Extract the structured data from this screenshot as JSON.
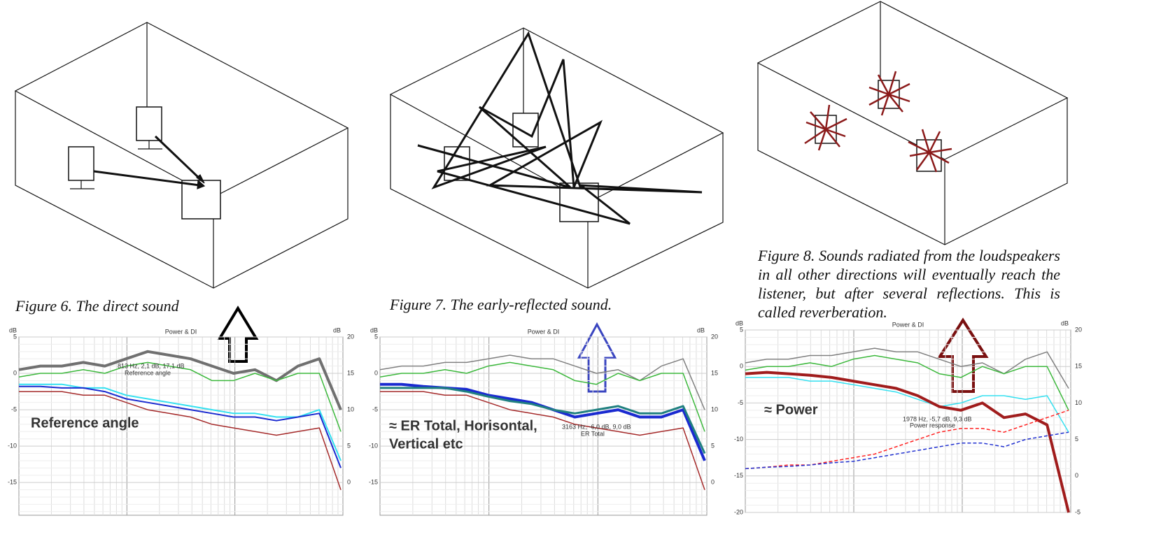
{
  "figures": [
    {
      "caption": "Figure 6. The direct sound"
    },
    {
      "caption": "Figure 7. The early-reflected sound."
    },
    {
      "caption": "Figure 8. Sounds radiated from the loudspeakers in all other directions will eventually reach the listener, but after several reflections. This is called reverberation."
    }
  ],
  "chart_data": [
    {
      "type": "line",
      "title": "Power & DI",
      "ylabel": "dB",
      "y2label": "dB",
      "ylim": [
        -19.5,
        5
      ],
      "yticks": [
        5,
        0,
        -5,
        -10,
        -15
      ],
      "y2lim": [
        -4.5,
        20
      ],
      "y2ticks": [
        20,
        15,
        10,
        5,
        0
      ],
      "grid": true,
      "series": [
        {
          "color": "#707070",
          "width": 4,
          "values": [
            0.5,
            1,
            1,
            1.5,
            1,
            2,
            3,
            2.5,
            2,
            1,
            0,
            0.5,
            -1,
            1,
            2,
            -5
          ]
        },
        {
          "color": "#3cb83c",
          "width": 1.5,
          "values": [
            -0.5,
            0,
            0,
            0.5,
            0,
            1,
            1.5,
            1,
            0.5,
            -1,
            -1,
            0,
            -1,
            0,
            0,
            -8
          ]
        },
        {
          "color": "#33e0f0",
          "width": 2,
          "values": [
            -1.5,
            -1.5,
            -1.5,
            -2,
            -2,
            -3,
            -3.5,
            -4,
            -4.5,
            -5,
            -5.5,
            -5.5,
            -6,
            -6,
            -5,
            -12
          ]
        },
        {
          "color": "#1a2ad0",
          "width": 2,
          "values": [
            -1.8,
            -1.8,
            -2,
            -2,
            -2.5,
            -3.5,
            -4,
            -4.5,
            -5,
            -5.5,
            -6,
            -6,
            -6.5,
            -6,
            -5.5,
            -13
          ]
        },
        {
          "color": "#a52a2a",
          "width": 1.5,
          "values": [
            -2.5,
            -2.5,
            -2.5,
            -3,
            -3,
            -4,
            -5,
            -5.5,
            -6,
            -7,
            -7.5,
            -8,
            -8.5,
            -8,
            -7.5,
            -16
          ]
        }
      ],
      "annotations": [
        "813 Hz, 2,1 dB, 17,1 dB",
        "Reference angle"
      ],
      "label": [
        "Reference angle"
      ],
      "label_color": "#000000"
    },
    {
      "type": "line",
      "title": "Power & DI",
      "ylabel": "dB",
      "y2label": "dB",
      "ylim": [
        -19.5,
        5
      ],
      "yticks": [
        5,
        0,
        -5,
        -10,
        -15
      ],
      "y2lim": [
        -4.5,
        20
      ],
      "y2ticks": [
        20,
        15,
        10,
        5,
        0
      ],
      "grid": true,
      "series": [
        {
          "color": "#808080",
          "width": 1.5,
          "values": [
            0.5,
            1,
            1,
            1.5,
            1.5,
            2,
            2.5,
            2,
            2,
            1,
            0,
            0.5,
            -1,
            1,
            2,
            -5
          ]
        },
        {
          "color": "#3cb83c",
          "width": 1.5,
          "values": [
            -0.5,
            0,
            0,
            0.5,
            0,
            1,
            1.5,
            1,
            0.5,
            -1,
            -1.5,
            0,
            -1,
            0,
            0,
            -8
          ]
        },
        {
          "color": "#1a2ad0",
          "width": 4,
          "values": [
            -1.5,
            -1.5,
            -1.8,
            -2,
            -2.2,
            -3,
            -3.5,
            -4,
            -5,
            -6,
            -5.5,
            -5,
            -6,
            -6,
            -5,
            -12
          ]
        },
        {
          "color": "#208080",
          "width": 3,
          "values": [
            -2,
            -2,
            -2,
            -2,
            -2.5,
            -3.2,
            -3.8,
            -4.2,
            -5,
            -5.5,
            -5,
            -4.5,
            -5.5,
            -5.5,
            -4.5,
            -11
          ]
        },
        {
          "color": "#a52a2a",
          "width": 1.5,
          "values": [
            -2.5,
            -2.5,
            -2.5,
            -3,
            -3,
            -4,
            -5,
            -5.5,
            -6,
            -7,
            -7.5,
            -8,
            -8.5,
            -8,
            -7.5,
            -16
          ]
        }
      ],
      "annotations": [
        "3163 Hz, -6,0 dB, 9,0 dB",
        "ER Total"
      ],
      "label": [
        "≈ ER Total, Horisontal,",
        "Vertical etc"
      ],
      "label_color": "#3a45c0"
    },
    {
      "type": "line",
      "title": "Power & DI",
      "ylabel": "dB",
      "y2label": "dB",
      "ylim": [
        -20,
        5
      ],
      "yticks": [
        5,
        0,
        -5,
        -10,
        -15,
        -20
      ],
      "y2lim": [
        -5,
        20
      ],
      "y2ticks": [
        20,
        15,
        10,
        5,
        0,
        -5
      ],
      "grid": true,
      "series": [
        {
          "color": "#808080",
          "width": 1.5,
          "values": [
            0.5,
            1,
            1,
            1.5,
            1.5,
            2,
            2.5,
            2,
            2,
            1,
            0,
            0.5,
            -1,
            1,
            2,
            -3
          ]
        },
        {
          "color": "#3cb83c",
          "width": 1.5,
          "values": [
            -0.5,
            0,
            0,
            0.5,
            0,
            1,
            1.5,
            1,
            0.5,
            -1,
            -1.5,
            0,
            -1,
            0,
            0,
            -6
          ]
        },
        {
          "color": "#33e0f0",
          "width": 1.5,
          "values": [
            -1.5,
            -1.5,
            -1.5,
            -2,
            -2,
            -2.5,
            -3,
            -3.5,
            -4.5,
            -5.5,
            -5,
            -4,
            -4,
            -4.5,
            -4,
            -9
          ]
        },
        {
          "color": "#a01c1c",
          "width": 4,
          "values": [
            -1,
            -0.8,
            -1,
            -1.2,
            -1.5,
            -2,
            -2.5,
            -3,
            -4,
            -5.5,
            -6,
            -5,
            -7,
            -6.5,
            -8,
            -20
          ]
        },
        {
          "color": "#ff2020",
          "width": 1.5,
          "dash": true,
          "axis": "y2",
          "values": [
            1,
            1.2,
            1.5,
            1.5,
            2,
            2.5,
            3,
            4,
            5,
            6,
            6.5,
            6.5,
            6,
            7,
            8,
            9
          ]
        },
        {
          "color": "#2030d0",
          "width": 1.5,
          "dash": true,
          "axis": "y2",
          "values": [
            1,
            1.2,
            1.3,
            1.5,
            1.8,
            2,
            2.5,
            3,
            3.5,
            4,
            4.5,
            4.5,
            4,
            5,
            5.5,
            6
          ]
        }
      ],
      "annotations": [
        "1978 Hz, -5,7 dB, 9,3 dB",
        "Power response"
      ],
      "label": [
        "≈ Power"
      ],
      "label_color": "#8b1a1a"
    }
  ]
}
